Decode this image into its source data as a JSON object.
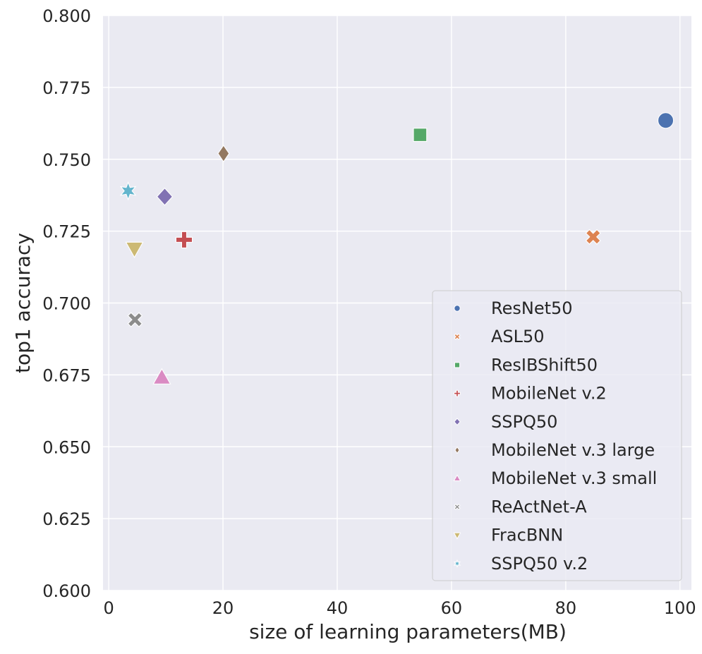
{
  "chart_data": {
    "type": "scatter",
    "title": "",
    "xlabel": "size of learning parameters(MB)",
    "ylabel": "top1 accuracy",
    "xlim": [
      -1,
      102
    ],
    "ylim": [
      0.6,
      0.8
    ],
    "xticks": [
      0,
      20,
      40,
      60,
      80,
      100
    ],
    "yticks": [
      0.6,
      0.625,
      0.65,
      0.675,
      0.7,
      0.725,
      0.75,
      0.775,
      0.8
    ],
    "xtick_labels": [
      "0",
      "20",
      "40",
      "60",
      "80",
      "100"
    ],
    "ytick_labels": [
      "0.600",
      "0.625",
      "0.650",
      "0.675",
      "0.700",
      "0.725",
      "0.750",
      "0.775",
      "0.800"
    ],
    "grid": true,
    "legend_position": "lower-right",
    "series": [
      {
        "name": "ResNet50",
        "marker": "circle",
        "color": "#4c72b0",
        "points": [
          {
            "x": 97.5,
            "y": 0.7635
          }
        ]
      },
      {
        "name": "ASL50",
        "marker": "x",
        "color": "#dd8452",
        "points": [
          {
            "x": 84.8,
            "y": 0.723
          }
        ]
      },
      {
        "name": "ResIBShift50",
        "marker": "square",
        "color": "#55a868",
        "points": [
          {
            "x": 54.5,
            "y": 0.7585
          }
        ]
      },
      {
        "name": "MobileNet v.2",
        "marker": "plus",
        "color": "#c44e52",
        "points": [
          {
            "x": 13.2,
            "y": 0.722
          }
        ]
      },
      {
        "name": "SSPQ50",
        "marker": "diamond",
        "color": "#8172b3",
        "points": [
          {
            "x": 9.8,
            "y": 0.737
          }
        ]
      },
      {
        "name": "MobileNet v.3 large",
        "marker": "thin-diamond",
        "color": "#937860",
        "points": [
          {
            "x": 20.1,
            "y": 0.752
          }
        ]
      },
      {
        "name": "MobileNet v.3 small",
        "marker": "triangle-up",
        "color": "#da8bc3",
        "points": [
          {
            "x": 9.3,
            "y": 0.674
          }
        ]
      },
      {
        "name": "ReActNet-A",
        "marker": "x-thin",
        "color": "#8c8c8c",
        "points": [
          {
            "x": 4.6,
            "y": 0.6942
          }
        ]
      },
      {
        "name": "FracBNN",
        "marker": "triangle-down",
        "color": "#ccb974",
        "points": [
          {
            "x": 4.5,
            "y": 0.719
          }
        ]
      },
      {
        "name": "SSPQ50 v.2",
        "marker": "star",
        "color": "#64b5cd",
        "points": [
          {
            "x": 3.4,
            "y": 0.739
          }
        ]
      }
    ]
  }
}
